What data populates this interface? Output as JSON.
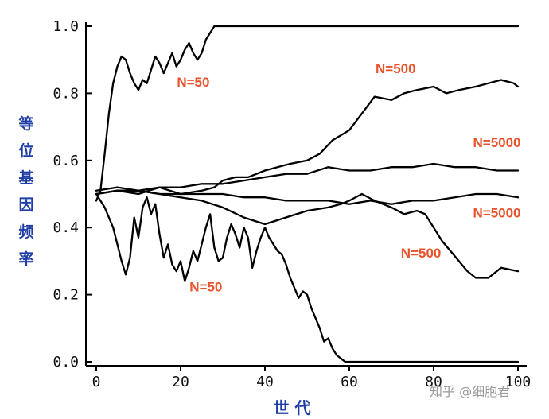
{
  "chart_data": {
    "type": "line",
    "title": "",
    "xlabel": "世 代",
    "ylabel": "等位基因频率",
    "xlim": [
      0,
      100
    ],
    "ylim": [
      0,
      1.0
    ],
    "xticks": [
      0,
      20,
      40,
      60,
      80,
      100
    ],
    "yticks": [
      "0.0",
      "0.2",
      "0.4",
      "0.6",
      "0.8",
      "1.0"
    ],
    "ytick_values": [
      0,
      0.2,
      0.4,
      0.6,
      0.8,
      1.0
    ],
    "grid": false,
    "series": [
      {
        "name": "N=50 (fixed)",
        "label": "N=50",
        "x": [
          0,
          1,
          2,
          3,
          4,
          5,
          6,
          7,
          8,
          9,
          10,
          11,
          12,
          13,
          14,
          15,
          16,
          17,
          18,
          19,
          20,
          21,
          22,
          23,
          24,
          25,
          26,
          27,
          28,
          29,
          30,
          40,
          50,
          60,
          70,
          80,
          90,
          100
        ],
        "values": [
          0.48,
          0.51,
          0.62,
          0.74,
          0.83,
          0.88,
          0.91,
          0.9,
          0.86,
          0.83,
          0.81,
          0.84,
          0.83,
          0.87,
          0.91,
          0.89,
          0.86,
          0.89,
          0.92,
          0.88,
          0.9,
          0.93,
          0.95,
          0.92,
          0.9,
          0.92,
          0.96,
          0.98,
          1.0,
          1.0,
          1.0,
          1.0,
          1.0,
          1.0,
          1.0,
          1.0,
          1.0,
          1.0
        ]
      },
      {
        "name": "N=50 (lost)",
        "label": "N=50",
        "x": [
          0,
          2,
          4,
          6,
          7,
          8,
          9,
          10,
          11,
          12,
          13,
          14,
          15,
          16,
          17,
          18,
          19,
          20,
          21,
          22,
          23,
          24,
          25,
          26,
          27,
          28,
          29,
          30,
          31,
          32,
          33,
          34,
          35,
          36,
          37,
          38,
          39,
          40,
          41,
          42,
          43,
          44,
          45,
          46,
          47,
          48,
          49,
          50,
          51,
          52,
          53,
          54,
          55,
          56,
          57,
          58,
          59,
          60,
          61,
          62,
          70,
          80,
          90,
          100
        ],
        "values": [
          0.5,
          0.46,
          0.4,
          0.3,
          0.26,
          0.31,
          0.43,
          0.37,
          0.46,
          0.49,
          0.44,
          0.47,
          0.38,
          0.31,
          0.35,
          0.29,
          0.27,
          0.3,
          0.24,
          0.28,
          0.33,
          0.3,
          0.35,
          0.4,
          0.44,
          0.34,
          0.3,
          0.31,
          0.37,
          0.41,
          0.38,
          0.34,
          0.4,
          0.37,
          0.28,
          0.33,
          0.37,
          0.4,
          0.37,
          0.35,
          0.33,
          0.32,
          0.29,
          0.25,
          0.22,
          0.19,
          0.21,
          0.2,
          0.16,
          0.13,
          0.1,
          0.06,
          0.07,
          0.04,
          0.02,
          0.01,
          0.0,
          0.0,
          0.0,
          0.0,
          0.0,
          0.0,
          0.0,
          0.0
        ]
      },
      {
        "name": "N=500 (up)",
        "label": "N=500",
        "x": [
          0,
          5,
          10,
          15,
          20,
          25,
          28,
          30,
          33,
          36,
          40,
          43,
          46,
          50,
          53,
          56,
          60,
          63,
          66,
          70,
          73,
          76,
          80,
          83,
          86,
          90,
          93,
          96,
          99,
          100
        ],
        "values": [
          0.5,
          0.51,
          0.5,
          0.52,
          0.5,
          0.51,
          0.52,
          0.54,
          0.55,
          0.55,
          0.57,
          0.58,
          0.59,
          0.6,
          0.62,
          0.66,
          0.69,
          0.74,
          0.79,
          0.78,
          0.8,
          0.81,
          0.82,
          0.8,
          0.81,
          0.82,
          0.83,
          0.84,
          0.83,
          0.82
        ]
      },
      {
        "name": "N=500 (down)",
        "label": "N=500",
        "x": [
          0,
          5,
          10,
          15,
          20,
          25,
          30,
          35,
          40,
          45,
          50,
          55,
          58,
          60,
          63,
          66,
          70,
          73,
          76,
          78,
          80,
          82,
          84,
          86,
          88,
          90,
          93,
          96,
          100
        ],
        "values": [
          0.51,
          0.52,
          0.51,
          0.5,
          0.49,
          0.48,
          0.46,
          0.43,
          0.41,
          0.43,
          0.45,
          0.46,
          0.47,
          0.48,
          0.5,
          0.48,
          0.46,
          0.44,
          0.45,
          0.44,
          0.4,
          0.36,
          0.33,
          0.3,
          0.27,
          0.25,
          0.25,
          0.28,
          0.27
        ]
      },
      {
        "name": "N=5000 (a)",
        "label": "N=5000",
        "x": [
          0,
          5,
          10,
          15,
          20,
          25,
          30,
          35,
          40,
          45,
          50,
          55,
          60,
          65,
          70,
          75,
          80,
          85,
          90,
          95,
          100
        ],
        "values": [
          0.5,
          0.51,
          0.51,
          0.52,
          0.52,
          0.53,
          0.53,
          0.54,
          0.55,
          0.56,
          0.56,
          0.58,
          0.57,
          0.57,
          0.58,
          0.58,
          0.59,
          0.58,
          0.58,
          0.57,
          0.57
        ]
      },
      {
        "name": "N=5000 (b)",
        "label": "N=5000",
        "x": [
          0,
          5,
          10,
          15,
          20,
          25,
          30,
          35,
          40,
          45,
          50,
          55,
          60,
          65,
          70,
          75,
          80,
          85,
          90,
          95,
          100
        ],
        "values": [
          0.5,
          0.51,
          0.51,
          0.5,
          0.5,
          0.5,
          0.5,
          0.49,
          0.49,
          0.48,
          0.48,
          0.48,
          0.47,
          0.48,
          0.47,
          0.48,
          0.48,
          0.49,
          0.5,
          0.5,
          0.49
        ]
      }
    ],
    "annotations": [
      {
        "text": "N=50",
        "x": 23,
        "y": 0.82
      },
      {
        "text": "N=500",
        "x": 71,
        "y": 0.86
      },
      {
        "text": "N=5000",
        "x": 95,
        "y": 0.64
      },
      {
        "text": "N=5000",
        "x": 95,
        "y": 0.43
      },
      {
        "text": "N=500",
        "x": 77,
        "y": 0.31
      },
      {
        "text": "N=50",
        "x": 26,
        "y": 0.21
      }
    ]
  },
  "watermark": "知乎 @细胞君",
  "colors": {
    "label": "#e8532b",
    "axis_title": "#1f3fa6",
    "line": "#000000"
  }
}
